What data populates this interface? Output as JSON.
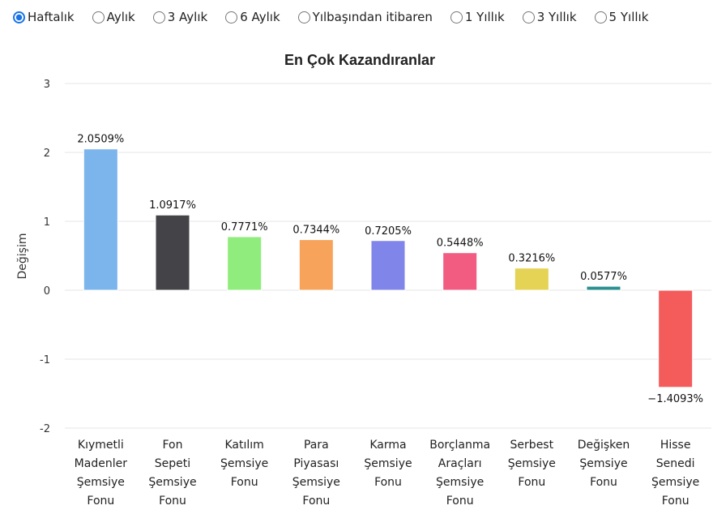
{
  "periods": [
    {
      "label": "Haftalık",
      "selected": true
    },
    {
      "label": "Aylık",
      "selected": false
    },
    {
      "label": "3 Aylık",
      "selected": false
    },
    {
      "label": "6 Aylık",
      "selected": false
    },
    {
      "label": "Yılbaşından itibaren",
      "selected": false
    },
    {
      "label": "1 Yıllık",
      "selected": false
    },
    {
      "label": "3 Yıllık",
      "selected": false
    },
    {
      "label": "5 Yıllık",
      "selected": false
    }
  ],
  "chart_data": {
    "type": "bar",
    "title": "En Çok Kazandıranlar",
    "xlabel": "",
    "ylabel": "Değişim",
    "ylim": [
      -2,
      3
    ],
    "yticks": [
      -2,
      -1,
      0,
      1,
      2,
      3
    ],
    "grid": true,
    "categories": [
      [
        "Kıymetli",
        "Madenler",
        "Şemsiye",
        "Fonu"
      ],
      [
        "Fon",
        "Sepeti",
        "Şemsiye",
        "Fonu"
      ],
      [
        "Katılım",
        "Şemsiye",
        "Fonu"
      ],
      [
        "Para",
        "Piyasası",
        "Şemsiye",
        "Fonu"
      ],
      [
        "Karma",
        "Şemsiye",
        "Fonu"
      ],
      [
        "Borçlanma",
        "Araçları",
        "Şemsiye",
        "Fonu"
      ],
      [
        "Serbest",
        "Şemsiye",
        "Fonu"
      ],
      [
        "Değişken",
        "Şemsiye",
        "Fonu"
      ],
      [
        "Hisse",
        "Senedi",
        "Şemsiye",
        "Fonu"
      ]
    ],
    "values": [
      2.0509,
      1.0917,
      0.7771,
      0.7344,
      0.7205,
      0.5448,
      0.3216,
      0.0577,
      -1.4093
    ],
    "data_labels": [
      "2.0509%",
      "1.0917%",
      "0.7771%",
      "0.7344%",
      "0.7205%",
      "0.5448%",
      "0.3216%",
      "0.0577%",
      "−1.4093%"
    ],
    "colors": [
      "#7cb5ec",
      "#434348",
      "#90ed7d",
      "#f7a35c",
      "#8085e9",
      "#f15c80",
      "#e4d354",
      "#2b908f",
      "#f45b5b"
    ]
  }
}
